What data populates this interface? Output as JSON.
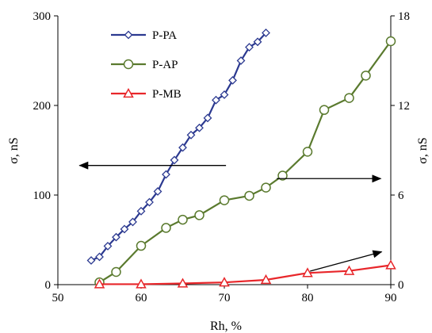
{
  "chart_data": {
    "type": "line",
    "xlabel": "Rh, %",
    "ylabel_left": "σ, nS",
    "ylabel_right": "σ, nS",
    "xlim": [
      50,
      90
    ],
    "ylim_left": [
      0,
      300
    ],
    "ylim_right": [
      0,
      18
    ],
    "x_ticks": [
      50,
      60,
      70,
      80,
      90
    ],
    "y_left_ticks": [
      0,
      100,
      200,
      300
    ],
    "y_right_ticks": [
      0,
      6,
      12,
      18
    ],
    "grid": false,
    "legend_placement": "top-left",
    "series": [
      {
        "name": "P-PA",
        "axis": "left",
        "color": "#2B3990",
        "marker": "diamond",
        "points": [
          [
            54,
            27
          ],
          [
            55,
            31
          ],
          [
            56,
            43
          ],
          [
            57,
            53
          ],
          [
            58,
            62
          ],
          [
            59,
            70
          ],
          [
            60,
            82
          ],
          [
            61,
            92
          ],
          [
            62,
            104
          ],
          [
            63,
            123
          ],
          [
            64,
            139
          ],
          [
            65,
            153
          ],
          [
            66,
            167
          ],
          [
            67,
            175
          ],
          [
            68,
            186
          ],
          [
            69,
            206
          ],
          [
            70,
            212
          ],
          [
            71,
            228
          ],
          [
            72,
            250
          ],
          [
            73,
            265
          ],
          [
            74,
            271
          ],
          [
            75,
            281
          ]
        ]
      },
      {
        "name": "P-AP",
        "axis": "right",
        "color": "#5A7A2E",
        "marker": "circle",
        "points": [
          [
            55,
            0.15
          ],
          [
            57,
            0.85
          ],
          [
            60,
            2.6
          ],
          [
            63,
            3.8
          ],
          [
            65,
            4.35
          ],
          [
            67,
            4.65
          ],
          [
            70,
            5.65
          ],
          [
            73,
            5.95
          ],
          [
            75,
            6.5
          ],
          [
            77,
            7.3
          ],
          [
            80,
            8.9
          ],
          [
            82,
            11.7
          ],
          [
            85,
            12.5
          ],
          [
            87,
            14.0
          ],
          [
            90,
            16.3
          ]
        ]
      },
      {
        "name": "P-MB",
        "axis": "right",
        "color": "#E8262A",
        "marker": "triangle",
        "points": [
          [
            55,
            0.03
          ],
          [
            60,
            0.03
          ],
          [
            65,
            0.08
          ],
          [
            70,
            0.15
          ],
          [
            75,
            0.32
          ],
          [
            80,
            0.78
          ],
          [
            85,
            0.92
          ],
          [
            90,
            1.3
          ]
        ]
      }
    ]
  },
  "colors": {
    "axis": "#000000",
    "arrow": "#000000"
  }
}
